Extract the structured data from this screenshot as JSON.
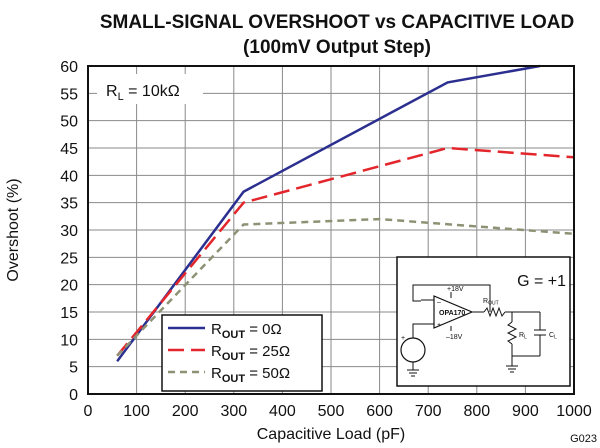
{
  "chart_data": {
    "type": "line",
    "title": "SMALL-SIGNAL OVERSHOOT vs CAPACITIVE LOAD",
    "subtitle": "(100mV Output Step)",
    "xlabel": "Capacitive Load (pF)",
    "ylabel": "Overshoot (%)",
    "xlim": [
      0,
      1000
    ],
    "ylim": [
      0,
      60
    ],
    "x_ticks": [
      0,
      100,
      200,
      300,
      400,
      500,
      600,
      700,
      800,
      900,
      1000
    ],
    "y_ticks": [
      0,
      5,
      10,
      15,
      20,
      25,
      30,
      35,
      40,
      45,
      50,
      55,
      60
    ],
    "grid": true,
    "legend_position": "bottom-left",
    "annotation_rl": {
      "main": "R",
      "sub": "L",
      "rest": " = 10kΩ"
    },
    "gain_label": "G = +1",
    "figure_code": "G023",
    "series": [
      {
        "name_main": "R",
        "name_sub": "OUT",
        "name_rest": " = 0Ω",
        "color": "#2b2f8f",
        "dash": "solid",
        "points": [
          [
            60,
            6
          ],
          [
            320,
            37
          ],
          [
            740,
            57
          ],
          [
            930,
            60
          ]
        ]
      },
      {
        "name_main": "R",
        "name_sub": "OUT",
        "name_rest": " = 25Ω",
        "color": "#e3262c",
        "dash": "long",
        "points": [
          [
            60,
            7
          ],
          [
            320,
            35
          ],
          [
            740,
            45
          ],
          [
            1000,
            43.3
          ]
        ]
      },
      {
        "name_main": "R",
        "name_sub": "OUT",
        "name_rest": " = 50Ω",
        "color": "#8d9275",
        "dash": "short",
        "points": [
          [
            60,
            7
          ],
          [
            320,
            31
          ],
          [
            600,
            32
          ],
          [
            1000,
            29.3
          ]
        ]
      }
    ],
    "inset_circuit": {
      "part": "OPA170",
      "supply_pos": "+18V",
      "supply_neg": "–18V",
      "r_out": {
        "main": "R",
        "sub": "OUT"
      },
      "r_load": {
        "main": "R",
        "sub": "L"
      },
      "c_load": {
        "main": "C",
        "sub": "L"
      }
    }
  }
}
